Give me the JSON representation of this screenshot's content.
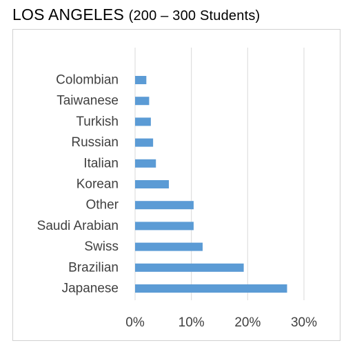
{
  "title": {
    "main": "LOS ANGELES",
    "sub": "(200 – 300 Students)"
  },
  "chart_data": {
    "type": "bar",
    "orientation": "horizontal",
    "categories": [
      "Colombian",
      "Taiwanese",
      "Turkish",
      "Russian",
      "Italian",
      "Korean",
      "Other",
      "Saudi Arabian",
      "Swiss",
      "Brazilian",
      "Japanese"
    ],
    "values": [
      0.02,
      0.025,
      0.028,
      0.032,
      0.037,
      0.06,
      0.104,
      0.104,
      0.12,
      0.193,
      0.27
    ],
    "xlim": [
      0,
      0.3
    ],
    "xticks": [
      0,
      0.1,
      0.2,
      0.3
    ],
    "xtick_labels": [
      "0%",
      "10%",
      "20%",
      "30%"
    ],
    "grid": "vertical",
    "bar_color": "#5B9BD5",
    "grid_color": "#d9d9d9"
  }
}
